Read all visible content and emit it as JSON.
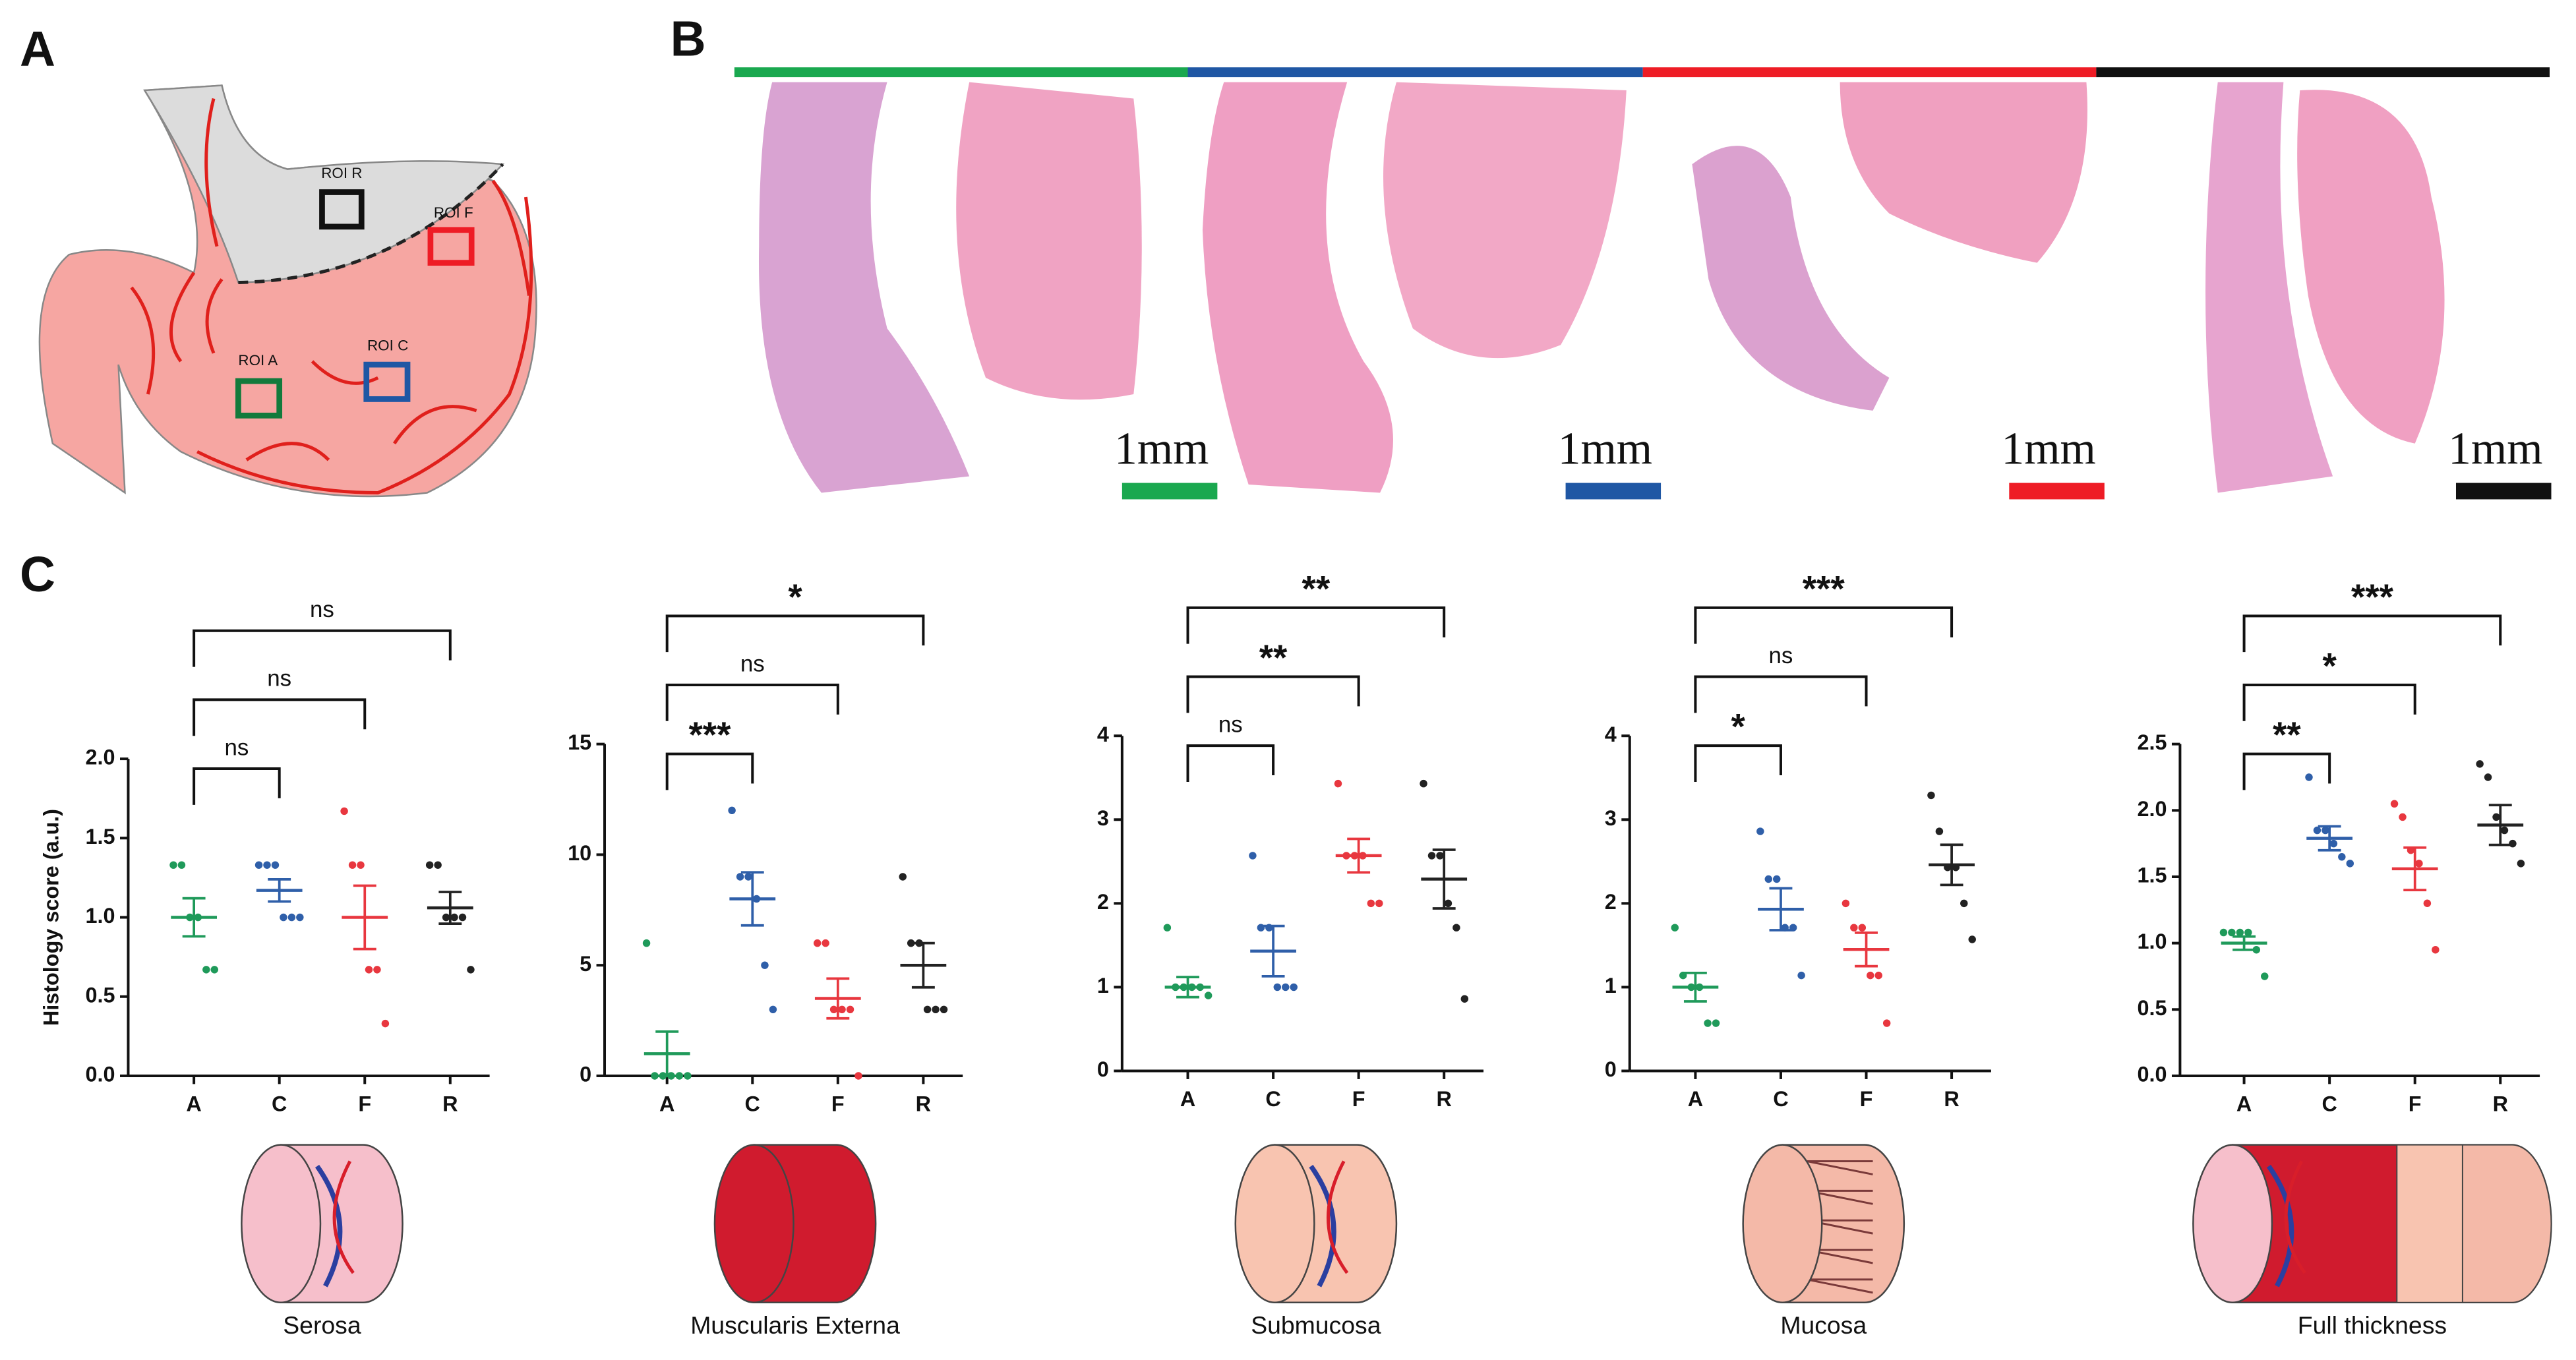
{
  "panel_labels": [
    "A",
    "B",
    "C"
  ],
  "diagram": {
    "roi_labels": [
      "ROI R",
      "ROI F",
      "ROI A",
      "ROI C"
    ]
  },
  "histology": {
    "scale_labels": [
      "1mm",
      "1mm",
      "1mm",
      "1mm"
    ],
    "colors": [
      "#1aa84f",
      "#1f57a4",
      "#ee1c25",
      "#111111"
    ]
  },
  "chart_data": [
    {
      "type": "dotplot",
      "title": "Serosa",
      "y_label": "Histology score (a.u.)",
      "categories": [
        "A",
        "C",
        "F",
        "R"
      ],
      "colors": [
        "#1f9a5a",
        "#2f5fa9",
        "#e8373f",
        "#222222"
      ],
      "ylim": [
        0,
        2
      ],
      "yticks": [
        {
          "value": 0,
          "label": "0.0"
        },
        0.5,
        {
          "value": 1,
          "label": "1.0"
        },
        1.5,
        {
          "value": 2,
          "label": "2.0"
        }
      ],
      "points": [
        [
          1.33,
          1.33,
          1,
          1,
          0.67,
          0.67
        ],
        [
          1.33,
          1.33,
          1.33,
          1,
          1,
          1
        ],
        [
          1.67,
          1.33,
          1.33,
          0.67,
          0.67,
          0.33
        ],
        [
          1.33,
          1.33,
          1,
          1,
          1,
          0.67
        ]
      ],
      "means": [
        1,
        1.17,
        1,
        1.06
      ],
      "errors": [
        0.12,
        0.07,
        0.2,
        0.1
      ],
      "comparisons": [
        {
          "from": 0,
          "to": 1,
          "label": "ns"
        },
        {
          "from": 0,
          "to": 2,
          "label": "ns"
        },
        {
          "from": 0,
          "to": 3,
          "label": "ns"
        }
      ]
    },
    {
      "type": "dotplot",
      "title": "Muscularis Externa",
      "categories": [
        "A",
        "C",
        "F",
        "R"
      ],
      "colors": [
        "#1f9a5a",
        "#2f5fa9",
        "#e8373f",
        "#222222"
      ],
      "ylim": [
        0,
        15
      ],
      "yticks": [
        0,
        5,
        10,
        15
      ],
      "points": [
        [
          6,
          0,
          0,
          0,
          0,
          0
        ],
        [
          12,
          9,
          9,
          8,
          5,
          3
        ],
        [
          6,
          6,
          3,
          3,
          3,
          0
        ],
        [
          9,
          6,
          6,
          3,
          3,
          3
        ]
      ],
      "means": [
        1,
        8,
        3.5,
        5
      ],
      "errors": [
        1,
        1.2,
        0.9,
        1
      ],
      "comparisons": [
        {
          "from": 0,
          "to": 1,
          "label": "***"
        },
        {
          "from": 0,
          "to": 2,
          "label": "ns"
        },
        {
          "from": 0,
          "to": 3,
          "label": "*"
        }
      ]
    },
    {
      "type": "dotplot",
      "title": "Submucosa",
      "categories": [
        "A",
        "C",
        "F",
        "R"
      ],
      "colors": [
        "#1f9a5a",
        "#2f5fa9",
        "#e8373f",
        "#222222"
      ],
      "ylim": [
        0,
        4
      ],
      "yticks": [
        0,
        1,
        2,
        3,
        4
      ],
      "points": [
        [
          1.71,
          1,
          1,
          1,
          1,
          0.9
        ],
        [
          2.57,
          1.71,
          1.71,
          1,
          1,
          1
        ],
        [
          3.43,
          2.57,
          2.57,
          2.57,
          2,
          2
        ],
        [
          3.43,
          2.57,
          2.57,
          2,
          1.71,
          0.86
        ]
      ],
      "means": [
        1,
        1.43,
        2.57,
        2.29
      ],
      "errors": [
        0.12,
        0.3,
        0.2,
        0.35
      ],
      "comparisons": [
        {
          "from": 0,
          "to": 1,
          "label": "ns"
        },
        {
          "from": 0,
          "to": 2,
          "label": "**"
        },
        {
          "from": 0,
          "to": 3,
          "label": "**"
        }
      ]
    },
    {
      "type": "dotplot",
      "title": "Mucosa",
      "categories": [
        "A",
        "C",
        "F",
        "R"
      ],
      "colors": [
        "#1f9a5a",
        "#2f5fa9",
        "#e8373f",
        "#222222"
      ],
      "ylim": [
        0,
        4
      ],
      "yticks": [
        0,
        1,
        2,
        3,
        4
      ],
      "points": [
        [
          1.71,
          1.14,
          1,
          1,
          0.57,
          0.57
        ],
        [
          2.86,
          2.29,
          2.29,
          1.71,
          1.71,
          1.14
        ],
        [
          2,
          1.71,
          1.71,
          1.14,
          1.14,
          0.57
        ],
        [
          3.29,
          2.86,
          2.43,
          2.43,
          2,
          1.57
        ]
      ],
      "means": [
        1,
        1.93,
        1.45,
        2.46
      ],
      "errors": [
        0.17,
        0.25,
        0.2,
        0.24
      ],
      "comparisons": [
        {
          "from": 0,
          "to": 1,
          "label": "*"
        },
        {
          "from": 0,
          "to": 2,
          "label": "ns"
        },
        {
          "from": 0,
          "to": 3,
          "label": "***"
        }
      ]
    },
    {
      "type": "dotplot",
      "title": "Full thickness",
      "categories": [
        "A",
        "C",
        "F",
        "R"
      ],
      "colors": [
        "#1f9a5a",
        "#2f5fa9",
        "#e8373f",
        "#222222"
      ],
      "ylim": [
        0,
        2.5
      ],
      "yticks": [
        {
          "value": 0,
          "label": "0.0"
        },
        0.5,
        {
          "value": 1,
          "label": "1.0"
        },
        1.5,
        {
          "value": 2,
          "label": "2.0"
        },
        2.5
      ],
      "points": [
        [
          1.08,
          1.08,
          1.08,
          1.08,
          0.95,
          0.75
        ],
        [
          2.25,
          1.85,
          1.85,
          1.75,
          1.65,
          1.6
        ],
        [
          2.05,
          1.95,
          1.7,
          1.6,
          1.3,
          0.95
        ],
        [
          2.35,
          2.25,
          1.95,
          1.85,
          1.75,
          1.6
        ]
      ],
      "means": [
        1,
        1.79,
        1.56,
        1.89
      ],
      "errors": [
        0.05,
        0.09,
        0.16,
        0.15
      ],
      "comparisons": [
        {
          "from": 0,
          "to": 1,
          "label": "**"
        },
        {
          "from": 0,
          "to": 2,
          "label": "*"
        },
        {
          "from": 0,
          "to": 3,
          "label": "***"
        }
      ]
    }
  ]
}
